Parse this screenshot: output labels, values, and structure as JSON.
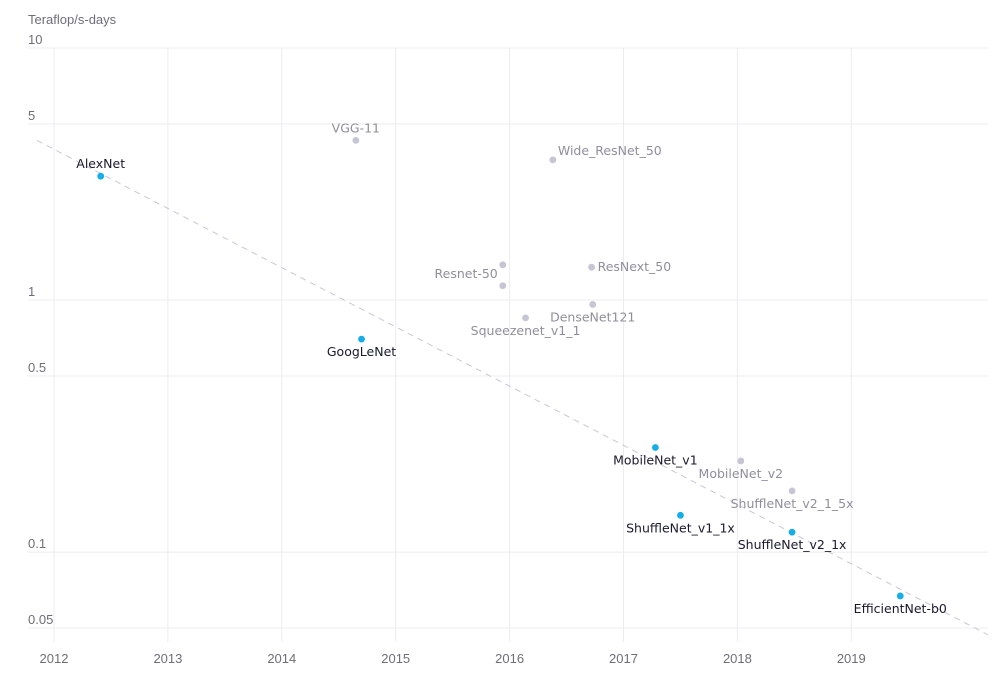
{
  "chart_data": {
    "type": "scatter",
    "title": "",
    "ylabel": "Teraflop/s-days",
    "xlabel": "",
    "yscale": "log",
    "ylim": [
      0.045,
      10
    ],
    "xlim": [
      2012,
      2020.2
    ],
    "y_ticks": [
      {
        "value": 10,
        "label": "10"
      },
      {
        "value": 5,
        "label": "5"
      },
      {
        "value": 1,
        "label": "1"
      },
      {
        "value": 0.5,
        "label": "0.5"
      },
      {
        "value": 0.1,
        "label": "0.1"
      },
      {
        "value": 0.05,
        "label": "0.05"
      }
    ],
    "x_ticks": [
      {
        "value": 2012,
        "label": "2012"
      },
      {
        "value": 2013,
        "label": "2013"
      },
      {
        "value": 2014,
        "label": "2014"
      },
      {
        "value": 2015,
        "label": "2015"
      },
      {
        "value": 2016,
        "label": "2016"
      },
      {
        "value": 2017,
        "label": "2017"
      },
      {
        "value": 2018,
        "label": "2018"
      },
      {
        "value": 2019,
        "label": "2019"
      }
    ],
    "grid": true,
    "trend_line": {
      "start": [
        2011.85,
        4.3
      ],
      "end": [
        2020.2,
        0.047
      ],
      "style": "dashed"
    },
    "series": [
      {
        "name": "highlighted",
        "color": "#15aee8",
        "label_color": "#1a1a2e",
        "points": [
          {
            "name": "AlexNet",
            "x": 2012.41,
            "y": 3.1,
            "label_pos": "above"
          },
          {
            "name": "GoogLeNet",
            "x": 2014.7,
            "y": 0.7,
            "label_pos": "below"
          },
          {
            "name": "MobileNet_v1",
            "x": 2017.28,
            "y": 0.26,
            "label_pos": "below"
          },
          {
            "name": "ShuffleNet_v1_1x",
            "x": 2017.5,
            "y": 0.14,
            "label_pos": "below"
          },
          {
            "name": "ShuffleNet_v2_1x",
            "x": 2018.48,
            "y": 0.12,
            "label_pos": "below"
          },
          {
            "name": "EfficientNet-b0",
            "x": 2019.43,
            "y": 0.067,
            "label_pos": "below"
          }
        ]
      },
      {
        "name": "other",
        "color": "#c5c5d3",
        "label_color": "#8f8f9c",
        "points": [
          {
            "name": "VGG-11",
            "x": 2014.65,
            "y": 4.3,
            "label_pos": "above"
          },
          {
            "name": "Wide_ResNet_50",
            "x": 2016.38,
            "y": 3.6,
            "label_pos": "above-right"
          },
          {
            "name": "Resnet-50",
            "x": 2015.94,
            "y": 1.38,
            "label_pos": "left"
          },
          {
            "name": "",
            "x": 2015.94,
            "y": 1.14,
            "label_pos": "none"
          },
          {
            "name": "ResNext_50",
            "x": 2016.72,
            "y": 1.35,
            "label_pos": "right"
          },
          {
            "name": "DenseNet121",
            "x": 2016.73,
            "y": 0.96,
            "label_pos": "below"
          },
          {
            "name": "Squeezenet_v1_1",
            "x": 2016.14,
            "y": 0.85,
            "label_pos": "below"
          },
          {
            "name": "MobileNet_v2",
            "x": 2018.03,
            "y": 0.23,
            "label_pos": "below"
          },
          {
            "name": "ShuffleNet_v2_1_5x",
            "x": 2018.48,
            "y": 0.175,
            "label_pos": "below"
          }
        ]
      }
    ]
  }
}
